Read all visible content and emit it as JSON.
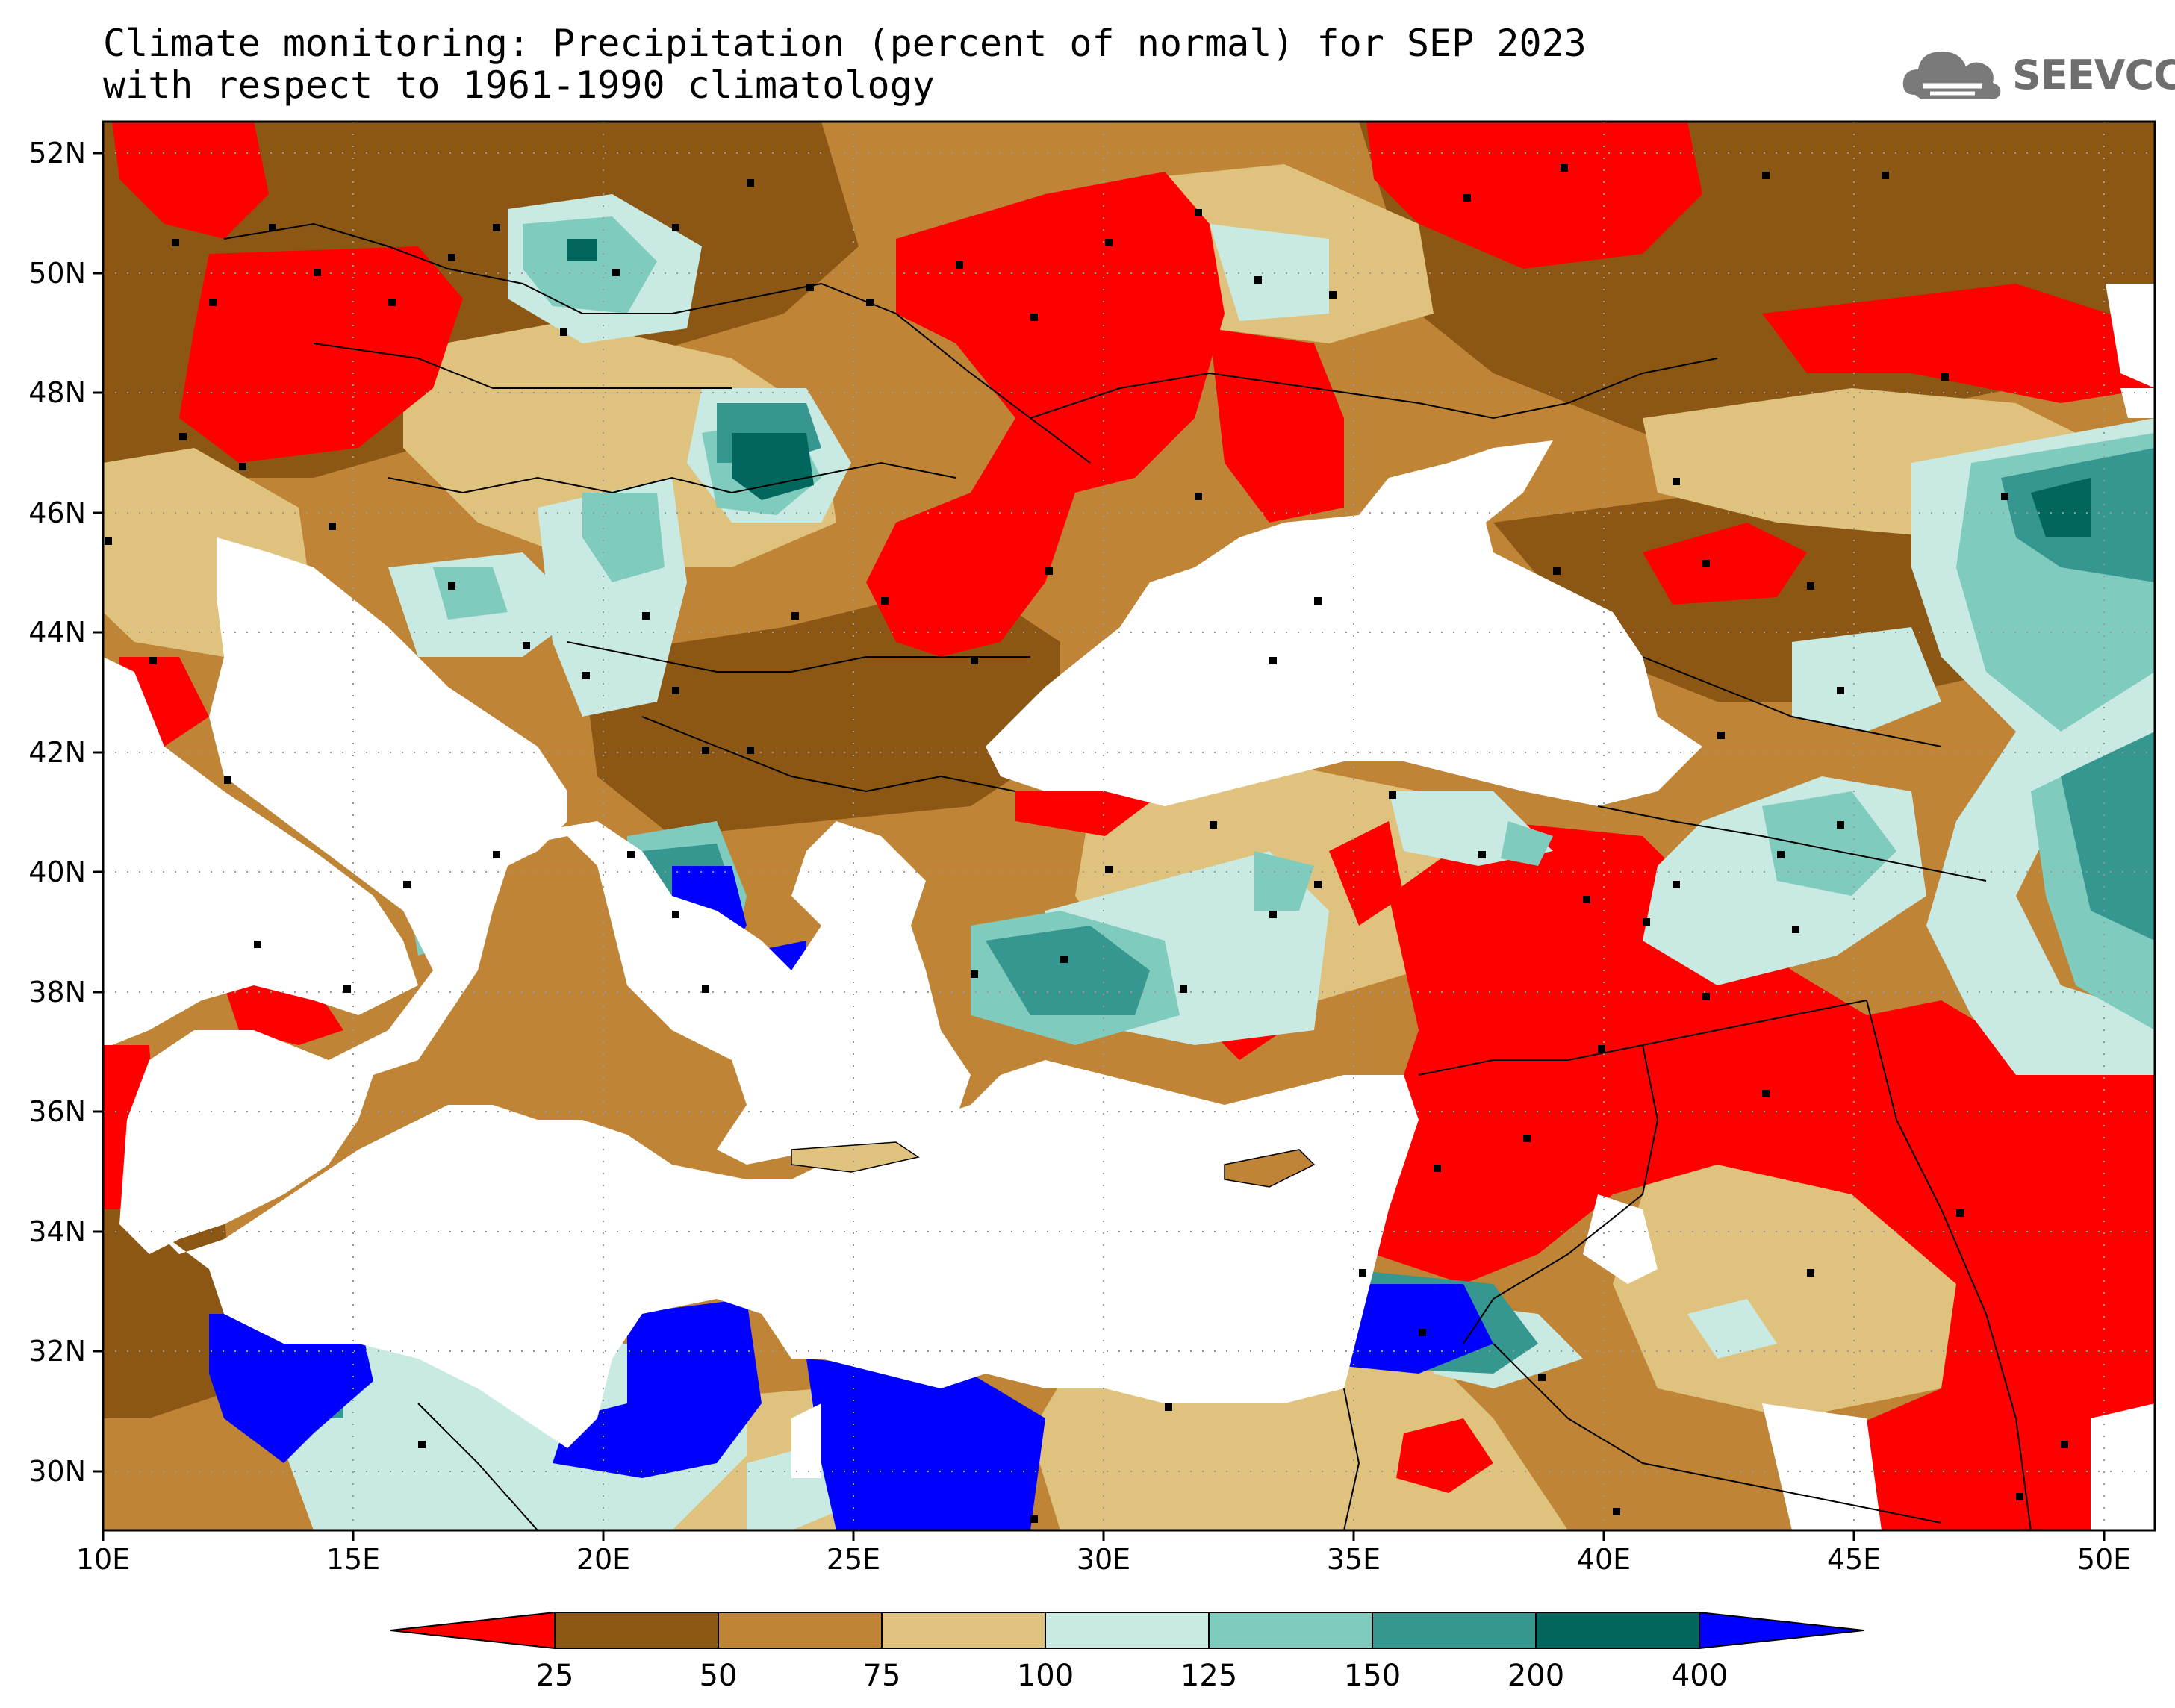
{
  "title": {
    "line1": "Climate monitoring: Precipitation (percent of normal) for SEP 2023",
    "line2": "with respect to 1961-1990 climatology"
  },
  "logo": {
    "text": "SEEVCCC",
    "icon": "cloud-icon",
    "color": "#6e6e6e"
  },
  "map": {
    "lat_labels": [
      "52N",
      "50N",
      "48N",
      "46N",
      "44N",
      "42N",
      "40N",
      "38N",
      "36N",
      "34N",
      "32N",
      "30N"
    ],
    "lon_labels": [
      "10E",
      "15E",
      "20E",
      "25E",
      "30E",
      "35E",
      "40E",
      "45E",
      "50E"
    ],
    "lat_range": [
      29,
      52.5
    ],
    "lon_range": [
      10,
      51
    ]
  },
  "colorbar": {
    "labels": [
      "25",
      "50",
      "75",
      "100",
      "125",
      "150",
      "200",
      "400"
    ],
    "colors": [
      "#ff0000",
      "#8c5714",
      "#bf8436",
      "#dfc27d",
      "#c8eae2",
      "#7fcbbe",
      "#35978f",
      "#01665e",
      "#0000ff"
    ]
  }
}
